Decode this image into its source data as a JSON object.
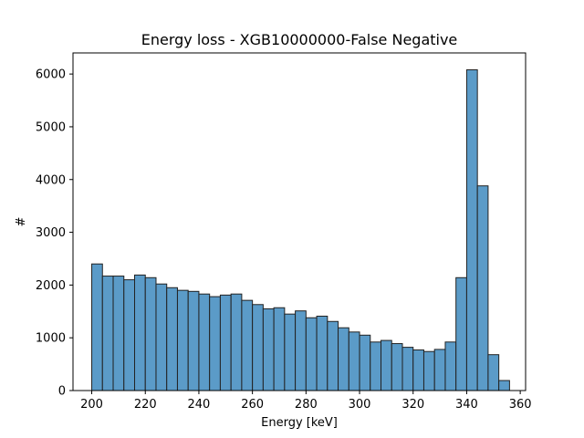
{
  "chart_data": {
    "type": "bar",
    "title": "Energy loss - XGB10000000-False Negative",
    "xlabel": "Energy [keV]",
    "ylabel": "#",
    "xlim": [
      193,
      362
    ],
    "ylim": [
      0,
      6400
    ],
    "grid": false,
    "legend": "none",
    "bar_color": "#5b9bc8",
    "edge_color": "#222222",
    "x_ticks": [
      200,
      220,
      240,
      260,
      280,
      300,
      320,
      340,
      360
    ],
    "y_ticks": [
      0,
      1000,
      2000,
      3000,
      4000,
      5000,
      6000
    ],
    "bin_edges": [
      200,
      204,
      208,
      212,
      216,
      220,
      224,
      228,
      232,
      236,
      240,
      244,
      248,
      252,
      256,
      260,
      264,
      268,
      272,
      276,
      280,
      284,
      288,
      292,
      296,
      300,
      304,
      308,
      312,
      316,
      320,
      324,
      328,
      332,
      336,
      340,
      344,
      348,
      352,
      356
    ],
    "values": [
      2400,
      2170,
      2170,
      2100,
      2190,
      2140,
      2020,
      1950,
      1900,
      1880,
      1830,
      1780,
      1810,
      1830,
      1710,
      1630,
      1550,
      1570,
      1450,
      1510,
      1380,
      1410,
      1310,
      1190,
      1110,
      1050,
      920,
      950,
      890,
      820,
      770,
      740,
      780,
      920,
      2140,
      6080,
      3880,
      680,
      190,
      50
    ]
  }
}
